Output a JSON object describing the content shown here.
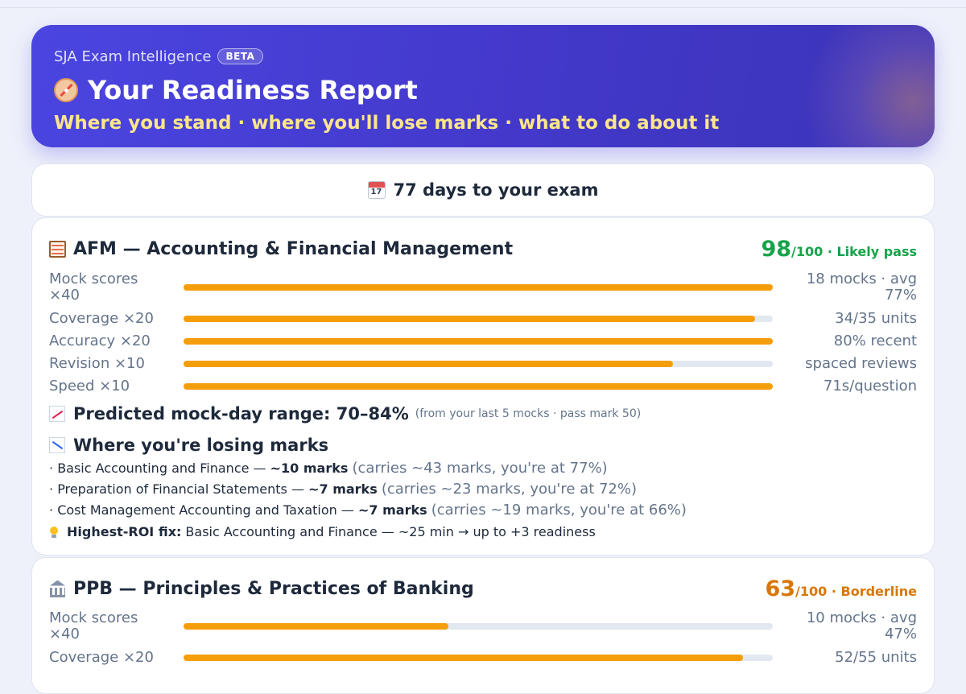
{
  "header": {
    "brand": "SJA Exam Intelligence",
    "badge": "BETA",
    "title": "Your Readiness Report",
    "subtitle": "Where you stand · where you'll lose marks · what to do about it",
    "icon": "compass-icon"
  },
  "countdown": {
    "icon": "calendar-icon",
    "calendar_day": "17",
    "text": "77 days to your exam"
  },
  "subjects": [
    {
      "icon": "abacus-icon",
      "title": "AFM — Accounting & Financial Management",
      "score": "98",
      "score_suffix": "/100 · Likely pass",
      "status_color": "#16a34a",
      "metrics": [
        {
          "label": "Mock scores ×40",
          "value": "18 mocks · avg 77%",
          "fill": 1.0
        },
        {
          "label": "Coverage ×20",
          "value": "34/35 units",
          "fill": 0.97
        },
        {
          "label": "Accuracy ×20",
          "value": "80% recent",
          "fill": 1.0
        },
        {
          "label": "Revision ×10",
          "value": "spaced reviews",
          "fill": 0.83
        },
        {
          "label": "Speed ×10",
          "value": "71s/question",
          "fill": 1.0
        }
      ],
      "predicted": {
        "main": "Predicted mock-day range: 70–84%",
        "note": "(from your last 5 mocks · pass mark 50)"
      },
      "losing_title": "Where you're losing marks",
      "losing": [
        {
          "bullet": "·",
          "topic": "Basic Accounting and Finance —",
          "marks": "~10 marks",
          "note": "(carries ~43 marks, you're at 77%)"
        },
        {
          "bullet": "·",
          "topic": "Preparation of Financial Statements —",
          "marks": "~7 marks",
          "note": "(carries ~23 marks, you're at 72%)"
        },
        {
          "bullet": "·",
          "topic": "Cost Management Accounting and Taxation —",
          "marks": "~7 marks",
          "note": "(carries ~19 marks, you're at 66%)"
        }
      ],
      "roi": {
        "label": "Highest-ROI fix:",
        "text": "Basic Accounting and Finance — ~25 min → up to +3 readiness"
      }
    },
    {
      "icon": "bank-icon",
      "title": "PPB — Principles & Practices of Banking",
      "score": "63",
      "score_suffix": "/100 · Borderline",
      "status_color": "#d97706",
      "metrics": [
        {
          "label": "Mock scores ×40",
          "value": "10 mocks · avg 47%",
          "fill": 0.45
        },
        {
          "label": "Coverage ×20",
          "value": "52/55 units",
          "fill": 0.95
        }
      ]
    }
  ],
  "colors": {
    "accent": "#4f46e5",
    "bar_fill": "#f59e0b",
    "bar_track": "#e2e8f0",
    "highlight": "#fde68a"
  }
}
